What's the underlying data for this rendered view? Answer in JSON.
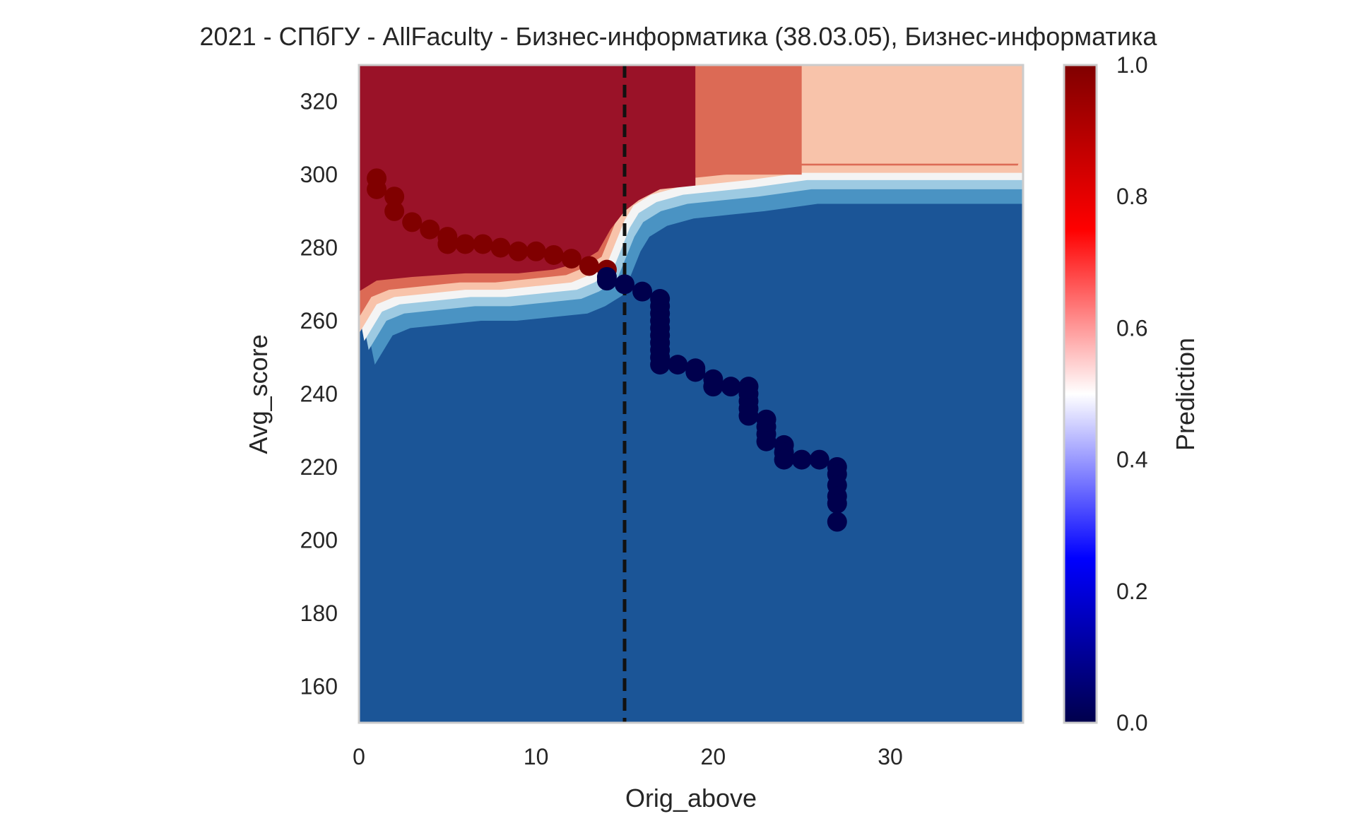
{
  "chart_data": {
    "type": "scatter",
    "title": "2021 - СПбГУ - AllFaculty - Бизнес-информатика (38.03.05), Бизнес-информатика",
    "xlabel": "Orig_above",
    "ylabel": "Avg_score",
    "xlim": [
      0,
      37.5
    ],
    "ylim": [
      150,
      330
    ],
    "x_ticks": [
      0,
      10,
      20,
      30
    ],
    "y_ticks": [
      160,
      180,
      200,
      220,
      240,
      260,
      280,
      300,
      320
    ],
    "threshold_x": 15,
    "background": "contourf of model prediction (0–1): high (red) for low Orig_above / high Avg_score, low (blue) elsewhere",
    "grid": false,
    "colorbar": {
      "label": "Prediction",
      "range": [
        0.0,
        1.0
      ],
      "ticks": [
        "0.0",
        "0.2",
        "0.4",
        "0.6",
        "0.8",
        "1.0"
      ],
      "colormap": "seismic"
    },
    "series": [
      {
        "color": "#800000",
        "points": [
          [
            1,
            299
          ],
          [
            1,
            296
          ],
          [
            2,
            294
          ],
          [
            2,
            290
          ],
          [
            3,
            287
          ],
          [
            4,
            285
          ],
          [
            5,
            283
          ],
          [
            5,
            281
          ],
          [
            6,
            281
          ],
          [
            7,
            281
          ],
          [
            8,
            280
          ],
          [
            9,
            279
          ],
          [
            10,
            279
          ],
          [
            11,
            278
          ],
          [
            12,
            277
          ],
          [
            13,
            275
          ],
          [
            14,
            274
          ]
        ]
      },
      {
        "color": "#00004d",
        "points": [
          [
            14,
            272
          ],
          [
            14,
            271
          ],
          [
            15,
            270
          ],
          [
            16,
            268
          ],
          [
            17,
            266
          ],
          [
            17,
            264
          ],
          [
            17,
            262
          ],
          [
            17,
            260
          ],
          [
            17,
            258
          ],
          [
            17,
            256
          ],
          [
            17,
            254
          ],
          [
            17,
            252
          ],
          [
            17,
            250
          ],
          [
            17,
            248
          ],
          [
            18,
            248
          ],
          [
            19,
            247
          ],
          [
            19,
            246
          ],
          [
            20,
            244
          ],
          [
            20,
            242
          ],
          [
            21,
            242
          ],
          [
            22,
            242
          ],
          [
            22,
            240
          ],
          [
            22,
            238
          ],
          [
            22,
            236
          ],
          [
            22,
            234
          ],
          [
            23,
            233
          ],
          [
            23,
            231
          ],
          [
            23,
            229
          ],
          [
            23,
            227
          ],
          [
            24,
            226
          ],
          [
            24,
            224
          ],
          [
            24,
            222
          ],
          [
            25,
            222
          ],
          [
            26,
            222
          ],
          [
            27,
            220
          ],
          [
            27,
            218
          ],
          [
            27,
            215
          ],
          [
            27,
            212
          ],
          [
            27,
            210
          ],
          [
            27,
            205
          ]
        ]
      }
    ]
  },
  "colors": {
    "red_region": "#9a1228",
    "red_mid": "#dc6a55",
    "red_light": "#f8c3aa",
    "blue_region": "#1b5597",
    "blue_mid": "#4a93c3",
    "blue_light": "#9dcae2",
    "threshold_line": "#111111",
    "axes_frame": "#cccccc"
  }
}
